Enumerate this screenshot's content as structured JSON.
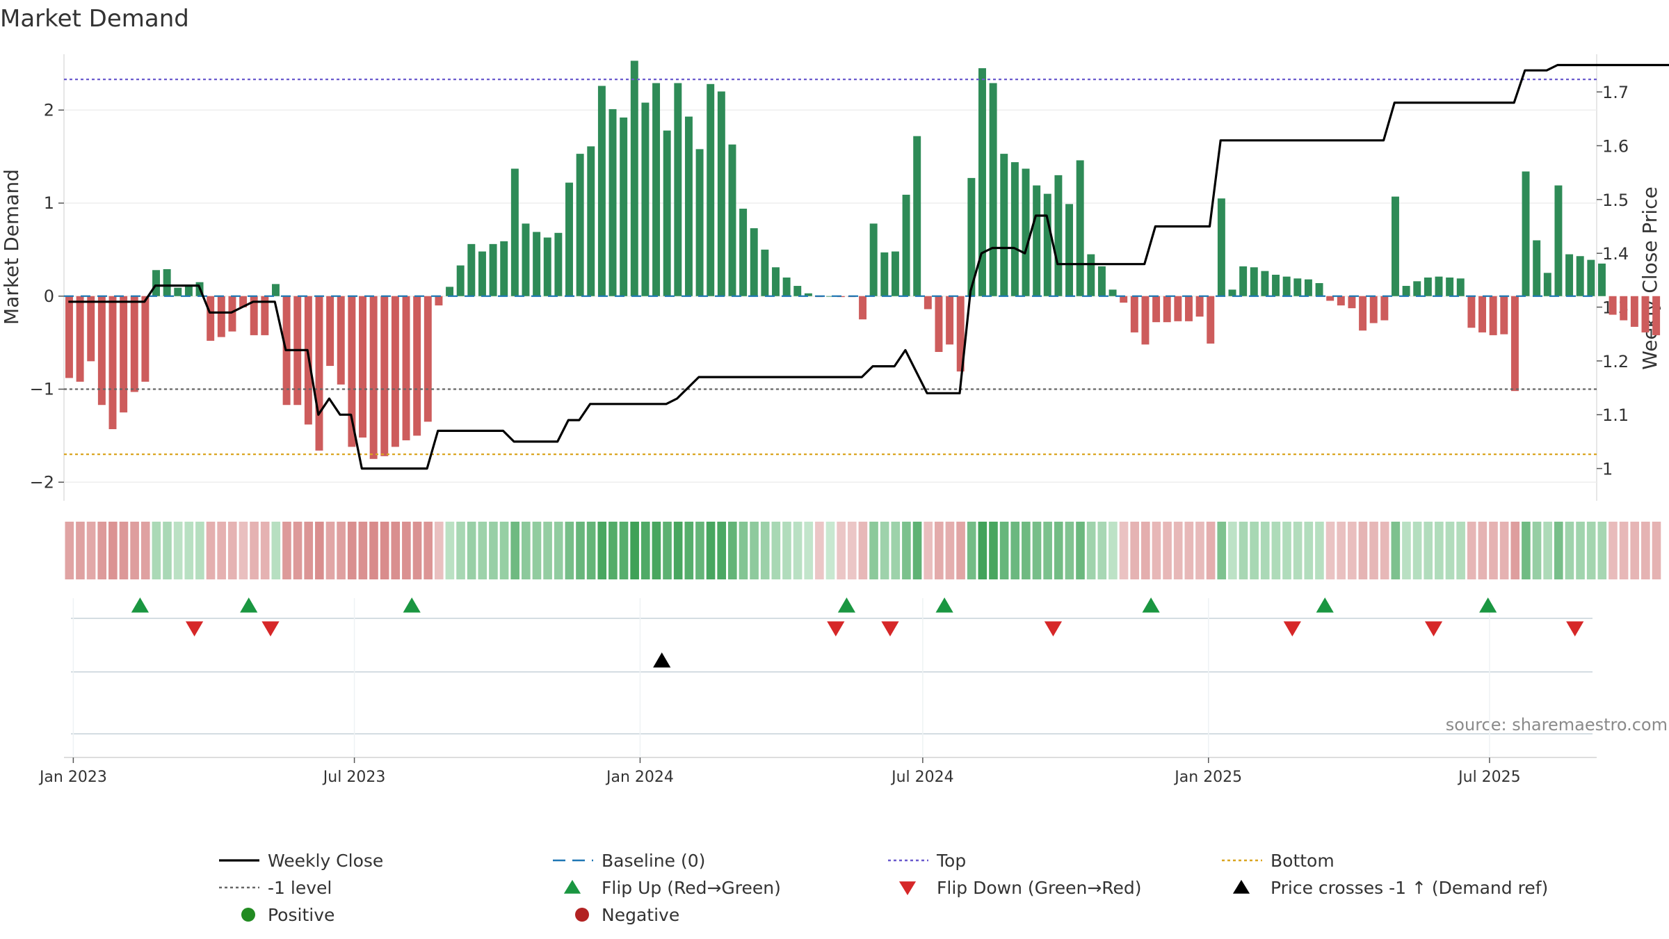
{
  "chart_data": {
    "type": "bar",
    "title": "Market Demand",
    "ylabel_left": "Market Demand",
    "ylabel_right": "Weekly Close Price",
    "source": "source: sharemaestro.com",
    "ylim_left": [
      -2.2,
      2.6
    ],
    "ylim_right": [
      0.94,
      1.77
    ],
    "yticks_left": [
      {
        "v": 2,
        "t": "2"
      },
      {
        "v": 1,
        "t": "1"
      },
      {
        "v": 0,
        "t": "0"
      },
      {
        "v": -1,
        "t": "−1"
      },
      {
        "v": -2,
        "t": "−2"
      }
    ],
    "yticks_right": [
      {
        "v": 1.7,
        "t": "1.7"
      },
      {
        "v": 1.6,
        "t": "1.6"
      },
      {
        "v": 1.5,
        "t": "1.5"
      },
      {
        "v": 1.4,
        "t": "1.4"
      },
      {
        "v": 1.3,
        "t": "1.3"
      },
      {
        "v": 1.2,
        "t": "1.2"
      },
      {
        "v": 1.1,
        "t": "1.1"
      },
      {
        "v": 1,
        "t": "1"
      }
    ],
    "x_start": "2022-12-26",
    "x_end": "2025-09-08",
    "x_tick_labels": [
      {
        "date": "2023-01-01",
        "label": "Jan 2023"
      },
      {
        "date": "2023-07-01",
        "label": "Jul 2023"
      },
      {
        "date": "2024-01-01",
        "label": "Jan 2024"
      },
      {
        "date": "2024-07-01",
        "label": "Jul 2024"
      },
      {
        "date": "2025-01-01",
        "label": "Jan 2025"
      },
      {
        "date": "2025-07-01",
        "label": "Jul 2025"
      }
    ],
    "first_week": "2022-12-26",
    "reference_lines": {
      "top": 2.33,
      "minus_one": -1,
      "bottom": -1.7,
      "baseline": 0
    },
    "demand": [
      -0.88,
      -0.92,
      -0.7,
      -1.17,
      -1.43,
      -1.25,
      -1.03,
      -0.92,
      0.28,
      0.29,
      0.09,
      0.12,
      0.15,
      -0.48,
      -0.44,
      -0.38,
      -0.12,
      -0.42,
      -0.42,
      0.13,
      -1.17,
      -1.17,
      -1.38,
      -1.66,
      -0.75,
      -0.95,
      -1.62,
      -1.52,
      -1.75,
      -1.72,
      -1.62,
      -1.55,
      -1.5,
      -1.35,
      -0.1,
      0.1,
      0.33,
      0.56,
      0.48,
      0.56,
      0.59,
      1.37,
      0.78,
      0.69,
      0.63,
      0.68,
      1.22,
      1.53,
      1.61,
      2.26,
      2.01,
      1.92,
      2.53,
      2.08,
      2.29,
      1.78,
      2.29,
      1.93,
      1.58,
      2.28,
      2.2,
      1.63,
      0.94,
      0.73,
      0.5,
      0.31,
      0.2,
      0.11,
      0.03,
      -0.01,
      0,
      -0.01,
      -0.01,
      -0.25,
      0.78,
      0.47,
      0.48,
      1.09,
      1.72,
      -0.14,
      -0.6,
      -0.52,
      -0.81,
      1.27,
      2.45,
      2.29,
      1.53,
      1.44,
      1.37,
      1.19,
      1.1,
      1.3,
      0.99,
      1.46,
      0.45,
      0.32,
      0.07,
      -0.07,
      -0.39,
      -0.52,
      -0.28,
      -0.28,
      -0.27,
      -0.27,
      -0.22,
      -0.51,
      1.05,
      0.07,
      0.32,
      0.31,
      0.27,
      0.23,
      0.21,
      0.19,
      0.18,
      0.14,
      -0.05,
      -0.1,
      -0.13,
      -0.37,
      -0.29,
      -0.26,
      1.07,
      0.11,
      0.16,
      0.2,
      0.21,
      0.2,
      0.19,
      -0.34,
      -0.39,
      -0.42,
      -0.41,
      -1.02,
      1.34,
      0.6,
      0.25,
      1.19,
      0.45,
      0.43,
      0.39,
      0.35,
      -0.2,
      -0.26,
      -0.33,
      -0.39,
      -0.42
    ],
    "price": [
      1.31,
      1.31,
      1.31,
      1.31,
      1.31,
      1.31,
      1.31,
      1.31,
      1.34,
      1.34,
      1.34,
      1.34,
      1.34,
      1.29,
      1.29,
      1.29,
      1.3,
      1.31,
      1.31,
      1.31,
      1.22,
      1.22,
      1.22,
      1.1,
      1.13,
      1.1,
      1.1,
      1.0,
      1.0,
      1.0,
      1.0,
      1.0,
      1.0,
      1.0,
      1.07,
      1.07,
      1.07,
      1.07,
      1.07,
      1.07,
      1.07,
      1.05,
      1.05,
      1.05,
      1.05,
      1.05,
      1.09,
      1.09,
      1.12,
      1.12,
      1.12,
      1.12,
      1.12,
      1.12,
      1.12,
      1.12,
      1.13,
      1.15,
      1.17,
      1.17,
      1.17,
      1.17,
      1.17,
      1.17,
      1.17,
      1.17,
      1.17,
      1.17,
      1.17,
      1.17,
      1.17,
      1.17,
      1.17,
      1.17,
      1.19,
      1.19,
      1.19,
      1.22,
      1.18,
      1.14,
      1.14,
      1.14,
      1.14,
      1.33,
      1.4,
      1.41,
      1.41,
      1.41,
      1.4,
      1.47,
      1.47,
      1.38,
      1.38,
      1.38,
      1.38,
      1.38,
      1.38,
      1.38,
      1.38,
      1.38,
      1.45,
      1.45,
      1.45,
      1.45,
      1.45,
      1.45,
      1.61,
      1.61,
      1.61,
      1.61,
      1.61,
      1.61,
      1.61,
      1.61,
      1.61,
      1.61,
      1.61,
      1.61,
      1.61,
      1.61,
      1.61,
      1.61,
      1.68,
      1.68,
      1.68,
      1.68,
      1.68,
      1.68,
      1.68,
      1.68,
      1.68,
      1.68,
      1.68,
      1.68,
      1.74,
      1.74,
      1.74,
      1.75,
      1.75,
      1.75,
      1.75,
      1.75,
      1.75,
      1.75,
      1.75,
      1.75,
      1.75,
      1.75,
      1.75
    ],
    "flip_up_dates": [
      "2023-02-13",
      "2023-04-24",
      "2023-08-07",
      "2024-05-13",
      "2024-07-15",
      "2024-11-25",
      "2025-03-17",
      "2025-06-30"
    ],
    "flip_down_dates": [
      "2023-03-20",
      "2023-05-08",
      "2024-05-06",
      "2024-06-10",
      "2024-09-23",
      "2025-02-24",
      "2025-05-26",
      "2025-08-25"
    ],
    "price_cross_dates": [
      "2024-01-15"
    ],
    "colors": {
      "positive": "#2e8b57",
      "negative": "#cd5c5c",
      "price": "#000000",
      "baseline": "#1f77b4",
      "top": "#6a5acd",
      "minus_one": "#666666",
      "bottom": "#daa520",
      "flip_up": "#1a9641",
      "flip_down": "#d62728",
      "cross": "#000000",
      "positive_dot": "#228b22",
      "negative_dot": "#b22222"
    },
    "legend": [
      {
        "label": "Weekly Close",
        "icon": "solid-line",
        "color": "#000000"
      },
      {
        "label": "Baseline (0)",
        "icon": "long-dash-line",
        "color": "#1f77b4"
      },
      {
        "label": "Top",
        "icon": "dotted-line",
        "color": "#6a5acd"
      },
      {
        "label": "Bottom",
        "icon": "dotted-line",
        "color": "#daa520"
      },
      {
        "label": "-1 level",
        "icon": "dotted-line",
        "color": "#666666"
      },
      {
        "label": "Flip Up (Red→Green)",
        "icon": "triangle-up",
        "color": "#1a9641"
      },
      {
        "label": "Flip Down (Green→Red)",
        "icon": "triangle-down",
        "color": "#d62728"
      },
      {
        "label": "Price crosses -1 ↑ (Demand ref)",
        "icon": "triangle-up",
        "color": "#000000"
      },
      {
        "label": "Positive",
        "icon": "circle",
        "color": "#228b22"
      },
      {
        "label": "Negative",
        "icon": "circle",
        "color": "#b22222"
      }
    ],
    "legend_position": "bottom"
  }
}
